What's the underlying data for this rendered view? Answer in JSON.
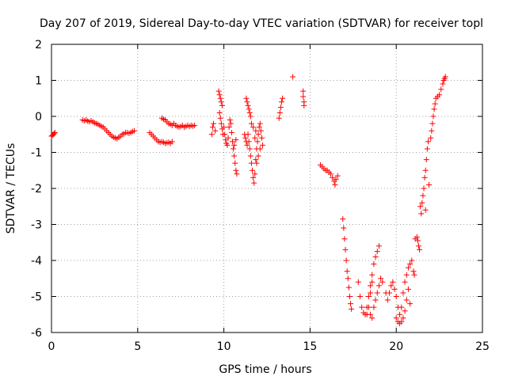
{
  "chart_data": {
    "type": "scatter",
    "title": "Day 207 of 2019, Sidereal Day-to-day VTEC variation (SDTVAR) for receiver topl",
    "xlabel": "GPS time / hours",
    "ylabel": "SDTVAR / TECUs",
    "xlim": [
      0,
      25
    ],
    "ylim": [
      -6,
      2
    ],
    "xticks": [
      "0",
      "5",
      "10",
      "15",
      "20",
      "25"
    ],
    "yticks": [
      "-6",
      "-5",
      "-4",
      "-3",
      "-2",
      "-1",
      "0",
      "1",
      "2"
    ],
    "grid": true,
    "marker": "+",
    "color": "#ff0000",
    "series": [
      {
        "name": "SDTVAR",
        "points": [
          [
            0.0,
            -0.55
          ],
          [
            0.05,
            -0.53
          ],
          [
            0.1,
            -0.5
          ],
          [
            0.15,
            -0.48
          ],
          [
            0.2,
            -0.45
          ],
          [
            1.8,
            -0.1
          ],
          [
            1.9,
            -0.12
          ],
          [
            2.0,
            -0.1
          ],
          [
            2.1,
            -0.13
          ],
          [
            2.2,
            -0.15
          ],
          [
            2.3,
            -0.12
          ],
          [
            2.4,
            -0.15
          ],
          [
            2.5,
            -0.18
          ],
          [
            2.6,
            -0.2
          ],
          [
            2.7,
            -0.22
          ],
          [
            2.8,
            -0.25
          ],
          [
            2.9,
            -0.28
          ],
          [
            3.0,
            -0.3
          ],
          [
            3.1,
            -0.35
          ],
          [
            3.2,
            -0.4
          ],
          [
            3.3,
            -0.45
          ],
          [
            3.4,
            -0.5
          ],
          [
            3.5,
            -0.55
          ],
          [
            3.6,
            -0.58
          ],
          [
            3.7,
            -0.6
          ],
          [
            3.8,
            -0.62
          ],
          [
            3.9,
            -0.58
          ],
          [
            4.0,
            -0.55
          ],
          [
            4.1,
            -0.5
          ],
          [
            4.2,
            -0.48
          ],
          [
            4.3,
            -0.45
          ],
          [
            4.4,
            -0.45
          ],
          [
            4.5,
            -0.47
          ],
          [
            4.6,
            -0.45
          ],
          [
            4.7,
            -0.42
          ],
          [
            4.8,
            -0.4
          ],
          [
            5.7,
            -0.45
          ],
          [
            5.8,
            -0.5
          ],
          [
            5.9,
            -0.55
          ],
          [
            6.0,
            -0.6
          ],
          [
            6.1,
            -0.65
          ],
          [
            6.2,
            -0.7
          ],
          [
            6.3,
            -0.72
          ],
          [
            6.4,
            -0.7
          ],
          [
            6.5,
            -0.72
          ],
          [
            6.6,
            -0.75
          ],
          [
            6.7,
            -0.73
          ],
          [
            6.8,
            -0.72
          ],
          [
            6.9,
            -0.75
          ],
          [
            7.0,
            -0.7
          ],
          [
            6.4,
            -0.05
          ],
          [
            6.5,
            -0.08
          ],
          [
            6.6,
            -0.1
          ],
          [
            6.7,
            -0.15
          ],
          [
            6.8,
            -0.2
          ],
          [
            6.9,
            -0.22
          ],
          [
            7.0,
            -0.25
          ],
          [
            7.1,
            -0.2
          ],
          [
            7.2,
            -0.25
          ],
          [
            7.3,
            -0.28
          ],
          [
            7.4,
            -0.3
          ],
          [
            7.5,
            -0.28
          ],
          [
            7.6,
            -0.25
          ],
          [
            7.7,
            -0.3
          ],
          [
            7.8,
            -0.28
          ],
          [
            7.9,
            -0.25
          ],
          [
            8.0,
            -0.28
          ],
          [
            8.1,
            -0.25
          ],
          [
            8.2,
            -0.27
          ],
          [
            8.3,
            -0.25
          ],
          [
            9.3,
            -0.5
          ],
          [
            9.35,
            -0.3
          ],
          [
            9.4,
            -0.2
          ],
          [
            9.5,
            -0.4
          ],
          [
            9.7,
            0.7
          ],
          [
            9.75,
            0.6
          ],
          [
            9.8,
            0.5
          ],
          [
            9.85,
            0.4
          ],
          [
            9.9,
            0.3
          ],
          [
            9.75,
            0.1
          ],
          [
            9.8,
            -0.05
          ],
          [
            9.85,
            -0.2
          ],
          [
            9.9,
            -0.35
          ],
          [
            9.95,
            -0.5
          ],
          [
            10.0,
            -0.3
          ],
          [
            10.05,
            -0.5
          ],
          [
            10.1,
            -0.65
          ],
          [
            10.15,
            -0.75
          ],
          [
            10.2,
            -0.8
          ],
          [
            10.25,
            -0.6
          ],
          [
            10.3,
            -0.3
          ],
          [
            10.35,
            -0.1
          ],
          [
            10.4,
            -0.2
          ],
          [
            10.45,
            -0.45
          ],
          [
            10.5,
            -0.7
          ],
          [
            10.55,
            -0.9
          ],
          [
            10.6,
            -1.1
          ],
          [
            10.65,
            -1.3
          ],
          [
            10.7,
            -1.5
          ],
          [
            10.75,
            -1.6
          ],
          [
            10.6,
            -0.8
          ],
          [
            10.7,
            -0.65
          ],
          [
            11.3,
            0.5
          ],
          [
            11.35,
            0.4
          ],
          [
            11.4,
            0.3
          ],
          [
            11.45,
            0.2
          ],
          [
            11.5,
            0.1
          ],
          [
            11.55,
            0.0
          ],
          [
            11.6,
            -0.2
          ],
          [
            11.2,
            -0.5
          ],
          [
            11.25,
            -0.6
          ],
          [
            11.3,
            -0.7
          ],
          [
            11.35,
            -0.8
          ],
          [
            11.4,
            -0.5
          ],
          [
            11.45,
            -0.7
          ],
          [
            11.5,
            -0.9
          ],
          [
            11.55,
            -1.1
          ],
          [
            11.6,
            -1.3
          ],
          [
            11.65,
            -1.5
          ],
          [
            11.7,
            -1.7
          ],
          [
            11.75,
            -1.85
          ],
          [
            11.8,
            -1.6
          ],
          [
            11.85,
            -1.2
          ],
          [
            11.9,
            -0.9
          ],
          [
            11.95,
            -0.7
          ],
          [
            12.0,
            -0.5
          ],
          [
            12.05,
            -0.3
          ],
          [
            12.1,
            -0.2
          ],
          [
            12.15,
            -0.4
          ],
          [
            12.2,
            -0.6
          ],
          [
            12.25,
            -0.8
          ],
          [
            11.9,
            -1.3
          ],
          [
            12.0,
            -1.1
          ],
          [
            12.1,
            -0.9
          ],
          [
            11.8,
            -0.6
          ],
          [
            11.85,
            -0.4
          ],
          [
            11.7,
            -0.3
          ],
          [
            13.2,
            -0.05
          ],
          [
            13.25,
            0.1
          ],
          [
            13.3,
            0.25
          ],
          [
            13.35,
            0.4
          ],
          [
            13.4,
            0.5
          ],
          [
            14.0,
            1.1
          ],
          [
            14.6,
            0.7
          ],
          [
            14.6,
            0.55
          ],
          [
            14.65,
            0.4
          ],
          [
            14.65,
            0.3
          ],
          [
            15.6,
            -1.35
          ],
          [
            15.7,
            -1.4
          ],
          [
            15.8,
            -1.45
          ],
          [
            15.9,
            -1.5
          ],
          [
            16.0,
            -1.5
          ],
          [
            16.1,
            -1.55
          ],
          [
            16.2,
            -1.6
          ],
          [
            16.3,
            -1.7
          ],
          [
            16.4,
            -1.8
          ],
          [
            16.5,
            -1.75
          ],
          [
            16.6,
            -1.65
          ],
          [
            16.45,
            -1.9
          ],
          [
            16.9,
            -2.85
          ],
          [
            16.95,
            -3.1
          ],
          [
            17.0,
            -3.4
          ],
          [
            17.05,
            -3.7
          ],
          [
            17.1,
            -4.0
          ],
          [
            17.15,
            -4.3
          ],
          [
            17.2,
            -4.5
          ],
          [
            17.25,
            -4.75
          ],
          [
            17.3,
            -5.0
          ],
          [
            17.35,
            -5.2
          ],
          [
            17.4,
            -5.35
          ],
          [
            17.8,
            -4.6
          ],
          [
            17.9,
            -5.0
          ],
          [
            18.0,
            -5.3
          ],
          [
            18.1,
            -5.45
          ],
          [
            18.2,
            -5.5
          ],
          [
            18.3,
            -5.3
          ],
          [
            18.4,
            -5.0
          ],
          [
            18.5,
            -4.7
          ],
          [
            18.6,
            -4.4
          ],
          [
            18.7,
            -4.1
          ],
          [
            18.8,
            -3.9
          ],
          [
            18.9,
            -3.75
          ],
          [
            19.0,
            -3.6
          ],
          [
            18.3,
            -5.5
          ],
          [
            18.4,
            -5.3
          ],
          [
            18.5,
            -5.5
          ],
          [
            18.6,
            -5.6
          ],
          [
            18.7,
            -5.3
          ],
          [
            18.8,
            -5.1
          ],
          [
            18.9,
            -4.9
          ],
          [
            19.0,
            -4.7
          ],
          [
            19.1,
            -4.5
          ],
          [
            19.2,
            -4.6
          ],
          [
            18.5,
            -4.9
          ],
          [
            18.6,
            -4.6
          ],
          [
            19.4,
            -4.9
          ],
          [
            19.5,
            -5.1
          ],
          [
            19.6,
            -4.9
          ],
          [
            19.7,
            -4.7
          ],
          [
            19.8,
            -4.6
          ],
          [
            19.9,
            -4.8
          ],
          [
            20.0,
            -5.0
          ],
          [
            20.1,
            -5.3
          ],
          [
            20.2,
            -5.5
          ],
          [
            20.3,
            -5.3
          ],
          [
            20.4,
            -4.9
          ],
          [
            20.5,
            -4.6
          ],
          [
            20.6,
            -4.4
          ],
          [
            20.7,
            -4.2
          ],
          [
            20.8,
            -4.1
          ],
          [
            20.9,
            -4.0
          ],
          [
            20.0,
            -5.6
          ],
          [
            20.1,
            -5.7
          ],
          [
            20.2,
            -5.75
          ],
          [
            20.3,
            -5.7
          ],
          [
            20.4,
            -5.6
          ],
          [
            20.5,
            -5.4
          ],
          [
            20.6,
            -5.1
          ],
          [
            20.7,
            -4.8
          ],
          [
            20.8,
            -5.2
          ],
          [
            21.0,
            -4.3
          ],
          [
            21.05,
            -4.4
          ],
          [
            21.1,
            -3.4
          ],
          [
            21.2,
            -3.35
          ],
          [
            21.25,
            -3.45
          ],
          [
            21.3,
            -3.6
          ],
          [
            21.35,
            -3.7
          ],
          [
            21.4,
            -2.5
          ],
          [
            21.45,
            -2.7
          ],
          [
            21.5,
            -2.4
          ],
          [
            21.55,
            -2.2
          ],
          [
            21.6,
            -2.0
          ],
          [
            21.65,
            -1.7
          ],
          [
            21.7,
            -1.5
          ],
          [
            21.75,
            -1.2
          ],
          [
            21.8,
            -0.9
          ],
          [
            21.85,
            -0.7
          ],
          [
            21.9,
            -1.9
          ],
          [
            21.7,
            -2.6
          ],
          [
            22.0,
            -0.6
          ],
          [
            22.05,
            -0.4
          ],
          [
            22.1,
            -0.2
          ],
          [
            22.15,
            0.0
          ],
          [
            22.2,
            0.2
          ],
          [
            22.25,
            0.35
          ],
          [
            22.3,
            0.5
          ],
          [
            22.4,
            0.55
          ],
          [
            22.5,
            0.6
          ],
          [
            22.6,
            0.75
          ],
          [
            22.7,
            0.9
          ],
          [
            22.75,
            1.0
          ],
          [
            22.8,
            1.05
          ],
          [
            22.85,
            1.1
          ]
        ]
      }
    ]
  }
}
